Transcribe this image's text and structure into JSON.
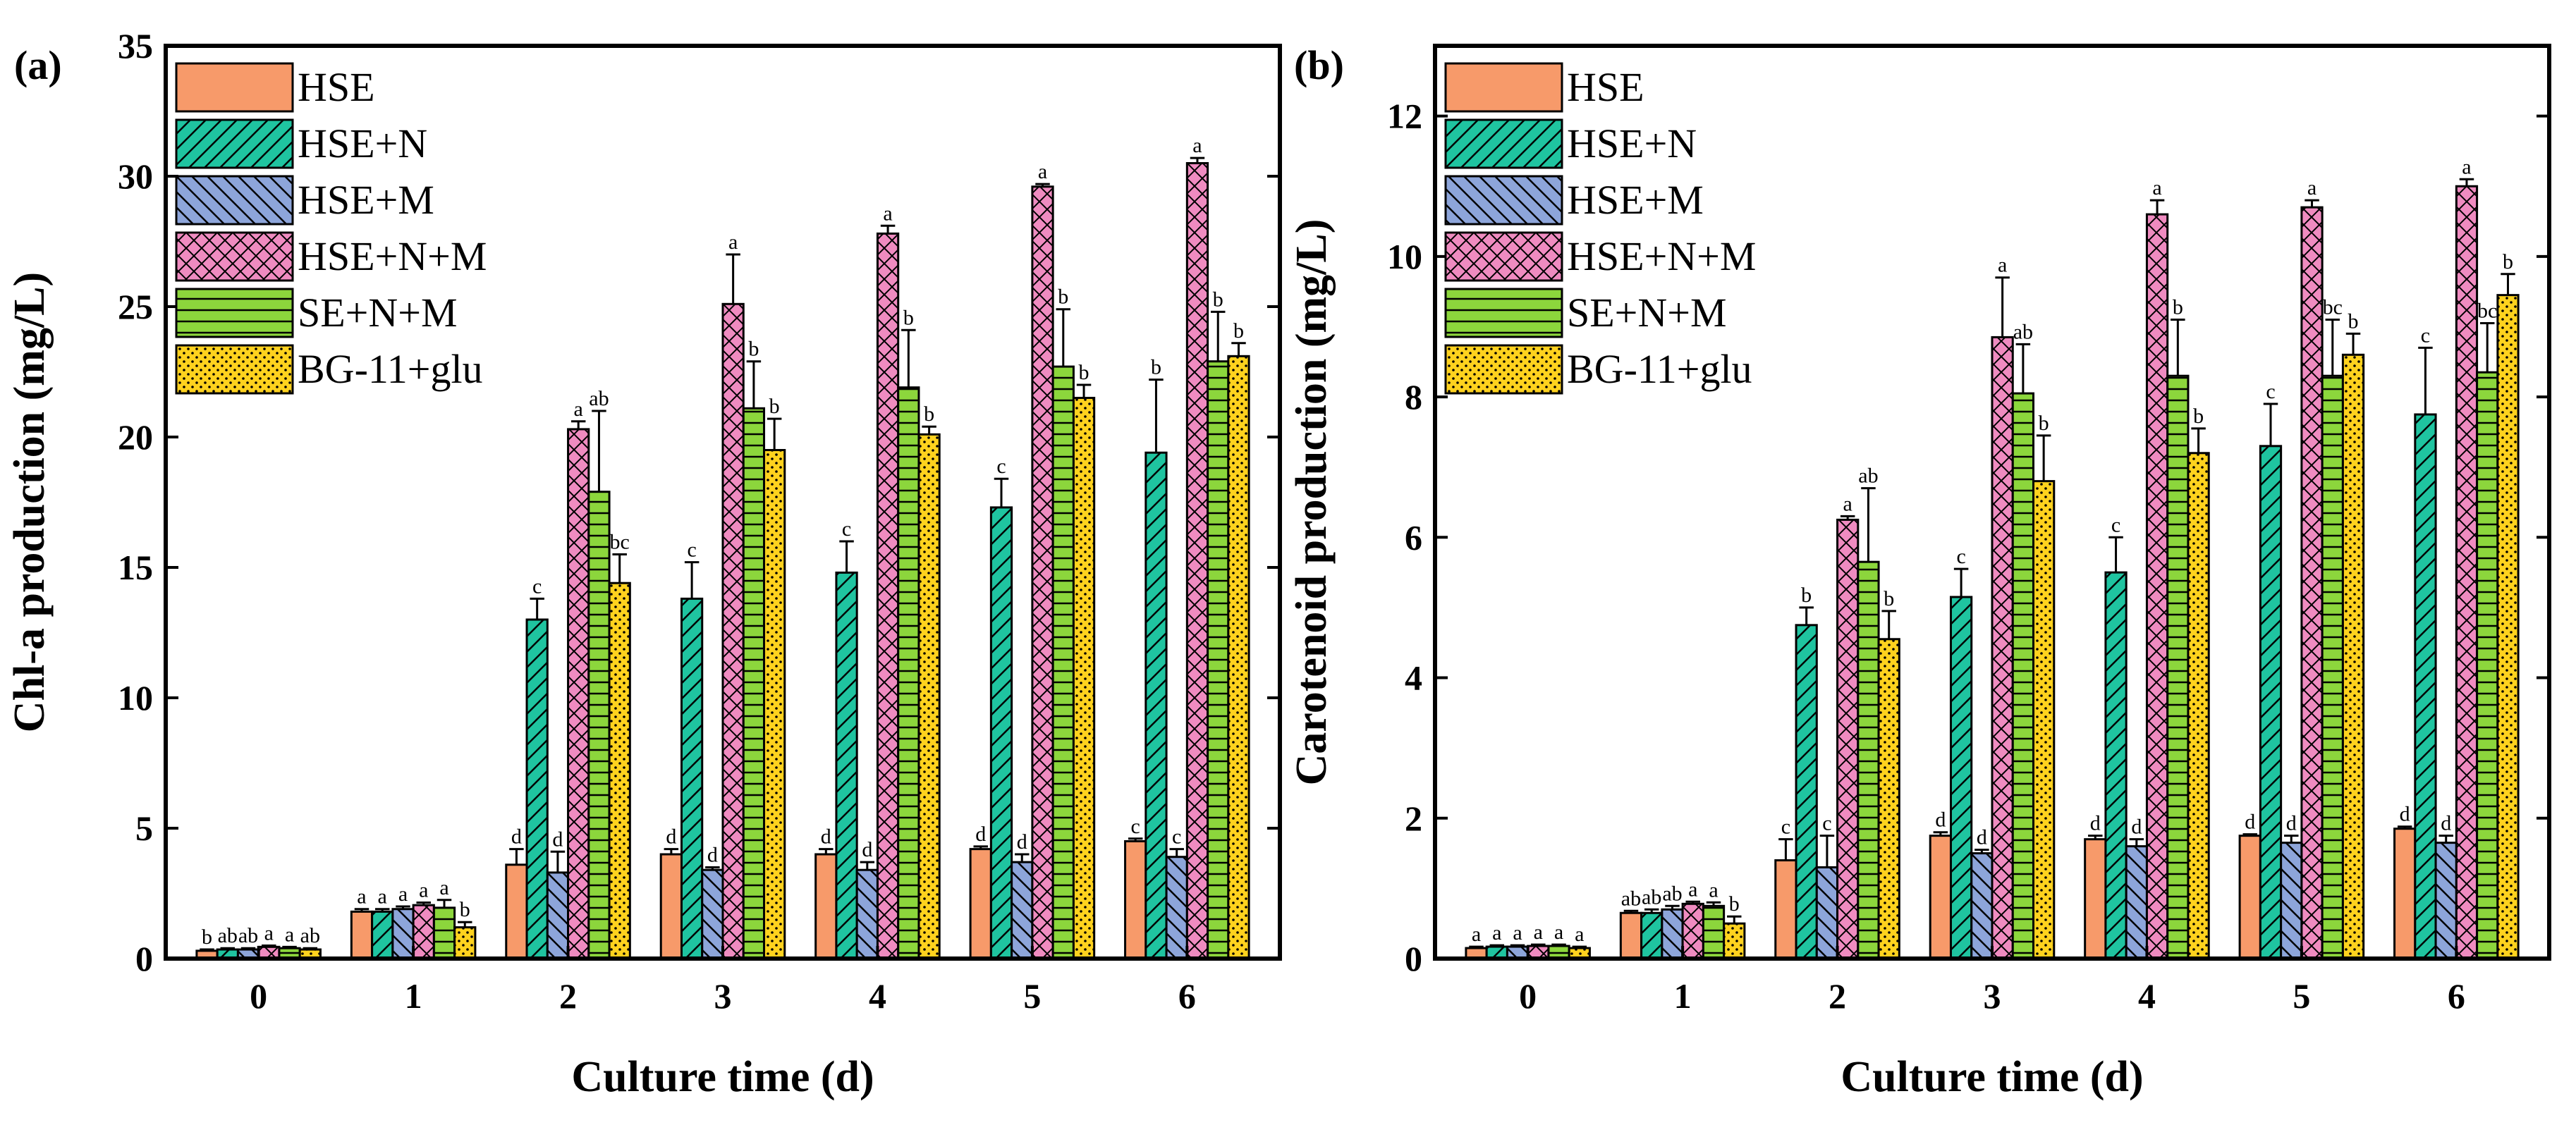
{
  "chart_data": [
    {
      "panel_label": "(a)",
      "type": "bar",
      "xlabel": "Culture time (d)",
      "ylabel": "Chl-a production (mg/L)",
      "ylim": [
        0,
        35
      ],
      "yticks": [
        0,
        5,
        10,
        15,
        20,
        25,
        30,
        35
      ],
      "categories": [
        "0",
        "1",
        "2",
        "3",
        "4",
        "5",
        "6"
      ],
      "legend_placement": "top-left",
      "series": [
        {
          "name": "HSE",
          "color": "#F79A6A",
          "pattern": "solid",
          "values": [
            0.3,
            1.8,
            3.6,
            4.0,
            4.0,
            4.2,
            4.5
          ],
          "errors": [
            0.05,
            0.1,
            0.6,
            0.2,
            0.2,
            0.1,
            0.1
          ],
          "labels": [
            "b",
            "a",
            "d",
            "d",
            "d",
            "d",
            "c"
          ]
        },
        {
          "name": "HSE+N",
          "color": "#1FC4A0",
          "pattern": "diag-forward",
          "values": [
            0.35,
            1.8,
            13.0,
            13.8,
            14.8,
            17.3,
            19.4
          ],
          "errors": [
            0.05,
            0.1,
            0.8,
            1.4,
            1.2,
            1.1,
            2.8
          ],
          "labels": [
            "ab",
            "a",
            "c",
            "c",
            "c",
            "c",
            "b"
          ]
        },
        {
          "name": "HSE+M",
          "color": "#8DA5DA",
          "pattern": "diag-back",
          "values": [
            0.35,
            1.9,
            3.3,
            3.4,
            3.4,
            3.7,
            3.9
          ],
          "errors": [
            0.05,
            0.1,
            0.8,
            0.1,
            0.3,
            0.3,
            0.3
          ],
          "labels": [
            "ab",
            "a",
            "d",
            "d",
            "d",
            "d",
            "c"
          ]
        },
        {
          "name": "HSE+N+M",
          "color": "#EF8BC0",
          "pattern": "cross",
          "values": [
            0.45,
            2.05,
            20.3,
            25.1,
            27.8,
            29.6,
            30.5
          ],
          "errors": [
            0.05,
            0.1,
            0.3,
            1.9,
            0.3,
            0.1,
            0.2
          ],
          "labels": [
            "a",
            "a",
            "a",
            "a",
            "a",
            "a",
            "a"
          ]
        },
        {
          "name": "SE+N+M",
          "color": "#8CD63C",
          "pattern": "horizontal",
          "values": [
            0.4,
            1.95,
            17.9,
            21.1,
            21.9,
            22.7,
            22.9
          ],
          "errors": [
            0.05,
            0.3,
            3.1,
            1.8,
            2.2,
            2.2,
            1.9
          ],
          "labels": [
            "a",
            "a",
            "ab",
            "b",
            "b",
            "b",
            "b"
          ]
        },
        {
          "name": "BG-11+glu",
          "color": "#FFD21E",
          "pattern": "dots",
          "values": [
            0.35,
            1.2,
            14.4,
            19.5,
            20.1,
            21.5,
            23.1
          ],
          "errors": [
            0.05,
            0.2,
            1.1,
            1.2,
            0.3,
            0.5,
            0.5
          ],
          "labels": [
            "ab",
            "b",
            "bc",
            "b",
            "b",
            "b",
            "b"
          ]
        }
      ]
    },
    {
      "panel_label": "(b)",
      "type": "bar",
      "xlabel": "Culture time (d)",
      "ylabel": "Carotenoid production (mg/L)",
      "ylim": [
        0,
        13
      ],
      "yticks": [
        0,
        2,
        4,
        6,
        8,
        10,
        12
      ],
      "categories": [
        "0",
        "1",
        "2",
        "3",
        "4",
        "5",
        "6"
      ],
      "legend_placement": "top-left",
      "series": [
        {
          "name": "HSE",
          "color": "#F79A6A",
          "pattern": "solid",
          "values": [
            0.15,
            0.65,
            1.4,
            1.75,
            1.7,
            1.75,
            1.85
          ],
          "errors": [
            0.02,
            0.03,
            0.3,
            0.05,
            0.05,
            0.02,
            0.03
          ],
          "labels": [
            "a",
            "ab",
            "c",
            "d",
            "d",
            "d",
            "d"
          ]
        },
        {
          "name": "HSE+N",
          "color": "#1FC4A0",
          "pattern": "diag-forward",
          "values": [
            0.17,
            0.65,
            4.75,
            5.15,
            5.5,
            7.3,
            7.75
          ],
          "errors": [
            0.02,
            0.05,
            0.25,
            0.4,
            0.5,
            0.6,
            0.95
          ],
          "labels": [
            "a",
            "ab",
            "b",
            "c",
            "c",
            "c",
            "c"
          ]
        },
        {
          "name": "HSE+M",
          "color": "#8DA5DA",
          "pattern": "diag-back",
          "values": [
            0.17,
            0.7,
            1.3,
            1.5,
            1.6,
            1.65,
            1.65
          ],
          "errors": [
            0.02,
            0.05,
            0.45,
            0.05,
            0.1,
            0.1,
            0.1
          ],
          "labels": [
            "a",
            "ab",
            "c",
            "d",
            "d",
            "d",
            "d"
          ]
        },
        {
          "name": "HSE+N+M",
          "color": "#EF8BC0",
          "pattern": "cross",
          "values": [
            0.18,
            0.78,
            6.25,
            8.85,
            10.6,
            10.7,
            11.0
          ],
          "errors": [
            0.02,
            0.03,
            0.05,
            0.85,
            0.2,
            0.1,
            0.1
          ],
          "labels": [
            "a",
            "a",
            "a",
            "a",
            "a",
            "a",
            "a"
          ]
        },
        {
          "name": "SE+N+M",
          "color": "#8CD63C",
          "pattern": "horizontal",
          "values": [
            0.18,
            0.75,
            5.65,
            8.05,
            8.3,
            8.3,
            8.35
          ],
          "errors": [
            0.02,
            0.05,
            1.05,
            0.7,
            0.8,
            0.8,
            0.7
          ],
          "labels": [
            "a",
            "a",
            "ab",
            "ab",
            "b",
            "bc",
            "bc"
          ]
        },
        {
          "name": "BG-11+glu",
          "color": "#FFD21E",
          "pattern": "dots",
          "values": [
            0.15,
            0.5,
            4.55,
            6.8,
            7.2,
            8.6,
            9.45
          ],
          "errors": [
            0.02,
            0.1,
            0.4,
            0.65,
            0.35,
            0.3,
            0.3
          ],
          "labels": [
            "a",
            "b",
            "b",
            "b",
            "b",
            "b",
            "b"
          ]
        }
      ]
    }
  ]
}
